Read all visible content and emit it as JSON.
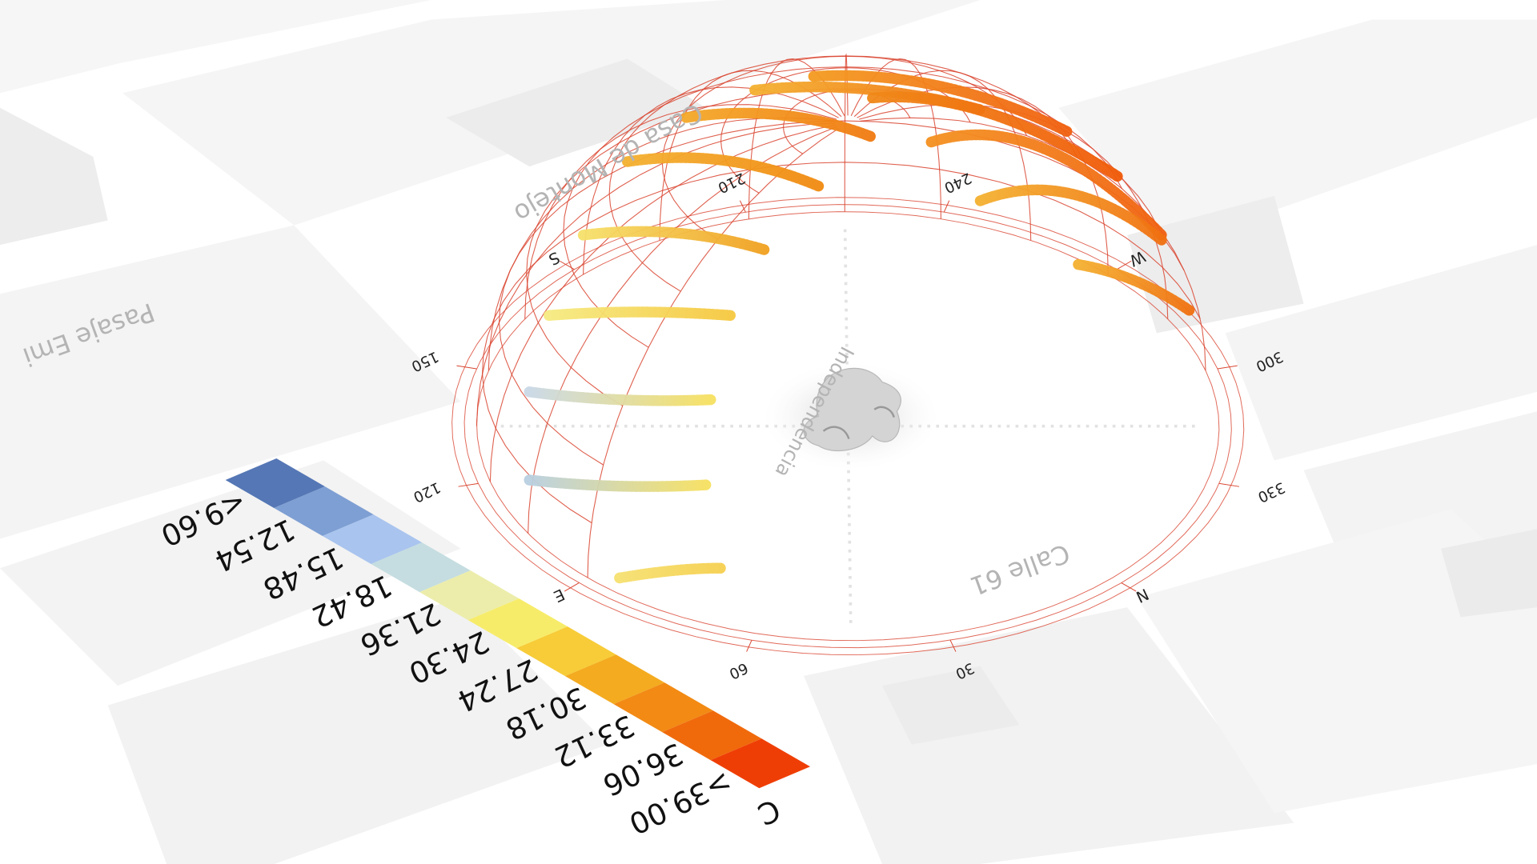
{
  "legend": {
    "unit": "C",
    "labels": [
      "<9.60",
      "12.54",
      "15.48",
      "18.42",
      "21.36",
      "24.30",
      "27.24",
      "30.18",
      "33.12",
      "36.06",
      ">39.00"
    ],
    "colors": [
      "#5577b5",
      "#7e9fd3",
      "#a9c4ee",
      "#c5dde0",
      "#ecedaa",
      "#f7ec6a",
      "#f7cc38",
      "#f4ab20",
      "#f28a14",
      "#f06a0c",
      "#ef3e05"
    ]
  },
  "compass": {
    "directions": [
      "N",
      "E",
      "S",
      "W"
    ],
    "degrees": [
      30,
      60,
      120,
      150,
      210,
      240,
      300,
      330
    ]
  },
  "map_labels": [
    "Casa de Montejo",
    "Pasaje Emi",
    "Calle 61",
    "Independencia"
  ]
}
